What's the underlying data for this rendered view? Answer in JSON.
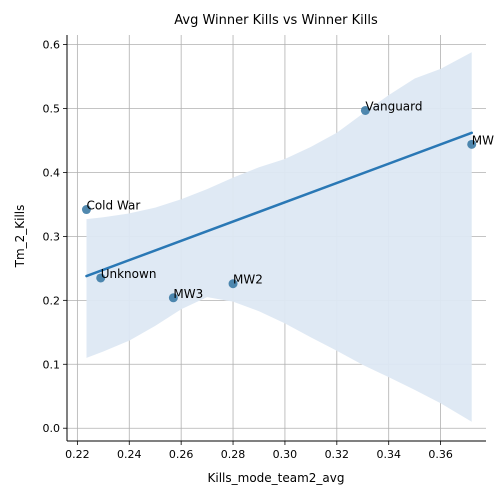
{
  "chart_data": {
    "type": "scatter",
    "title": "Avg Winner Kills vs Winner Kills",
    "xlabel": "Kills_mode_team2_avg",
    "ylabel": "Tm_2_Kills",
    "xlim": [
      0.216,
      0.3775
    ],
    "ylim": [
      -0.02,
      0.615
    ],
    "x_ticks": [
      "0.22",
      "0.24",
      "0.26",
      "0.28",
      "0.30",
      "0.32",
      "0.34",
      "0.36"
    ],
    "y_ticks": [
      "0.0",
      "0.1",
      "0.2",
      "0.3",
      "0.4",
      "0.5",
      "0.6"
    ],
    "grid": true,
    "points": [
      {
        "label": "Cold War",
        "x": 0.2235,
        "y": 0.342
      },
      {
        "label": "Unknown",
        "x": 0.229,
        "y": 0.235
      },
      {
        "label": "MW3",
        "x": 0.257,
        "y": 0.204
      },
      {
        "label": "MW2",
        "x": 0.28,
        "y": 0.226
      },
      {
        "label": "Vanguard",
        "x": 0.331,
        "y": 0.497
      },
      {
        "label": "MW",
        "x": 0.372,
        "y": 0.444
      }
    ],
    "regression_line": {
      "x": [
        0.2235,
        0.372
      ],
      "y": [
        0.238,
        0.462
      ]
    },
    "confidence_band": {
      "x": [
        0.2235,
        0.23,
        0.24,
        0.25,
        0.26,
        0.27,
        0.28,
        0.29,
        0.3,
        0.31,
        0.32,
        0.33,
        0.34,
        0.35,
        0.36,
        0.372
      ],
      "upper": [
        0.327,
        0.33,
        0.336,
        0.345,
        0.358,
        0.374,
        0.392,
        0.408,
        0.421,
        0.44,
        0.462,
        0.492,
        0.521,
        0.547,
        0.562,
        0.588
      ],
      "lower": [
        0.11,
        0.12,
        0.137,
        0.16,
        0.186,
        0.205,
        0.198,
        0.183,
        0.164,
        0.142,
        0.121,
        0.099,
        0.08,
        0.06,
        0.039,
        0.01
      ]
    },
    "colors": {
      "point": "#3274a1",
      "line": "#2a78b5",
      "band": "#dde8f3"
    }
  }
}
